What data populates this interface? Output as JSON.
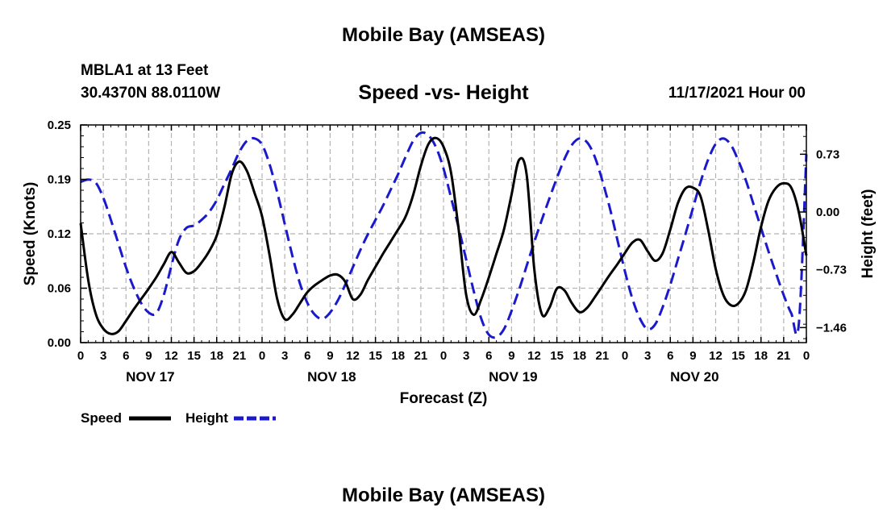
{
  "header": {
    "title": "Mobile Bay (AMSEAS)",
    "station": "MBLA1 at 13 Feet",
    "coords": "30.4370N  88.0110W",
    "subtitle": "Speed -vs- Height",
    "datetime": "11/17/2021 Hour 00"
  },
  "footer": {
    "title": "Mobile Bay (AMSEAS)"
  },
  "legend": {
    "speed": "Speed",
    "height": "Height"
  },
  "colors": {
    "speed": "#000000",
    "height": "#1a1acc",
    "grid": "#b4b4b4"
  },
  "chart_data": {
    "type": "line",
    "title": "Speed -vs- Height",
    "xlabel": "Forecast (Z)",
    "ylabel": "Speed (Knots)",
    "y2label": "Height (feet)",
    "xlim": [
      0,
      96
    ],
    "ylim": [
      0,
      0.25
    ],
    "y2lim": [
      -1.65,
      1.1
    ],
    "yticks": [
      "0.00",
      "0.06",
      "0.12",
      "0.19",
      "0.25"
    ],
    "y2ticks": [
      "0.73",
      "0.00",
      "-0.73",
      "-1.46"
    ],
    "xticks": [
      "0",
      "3",
      "6",
      "9",
      "12",
      "15",
      "18",
      "21",
      "0",
      "3",
      "6",
      "9",
      "12",
      "15",
      "18",
      "21",
      "0",
      "3",
      "6",
      "9",
      "12",
      "15",
      "18",
      "21",
      "0",
      "3",
      "6",
      "9",
      "12",
      "15",
      "18",
      "21",
      "0"
    ],
    "day_labels": [
      {
        "label": "NOV 17",
        "hour": 9
      },
      {
        "label": "NOV 18",
        "hour": 33
      },
      {
        "label": "NOV 19",
        "hour": 57
      },
      {
        "label": "NOV 20",
        "hour": 81
      }
    ],
    "series": [
      {
        "name": "Speed",
        "axis": "left",
        "points": [
          [
            0,
            0.137
          ],
          [
            1,
            0.072
          ],
          [
            2,
            0.033
          ],
          [
            3,
            0.016
          ],
          [
            4,
            0.01
          ],
          [
            5,
            0.013
          ],
          [
            6,
            0.025
          ],
          [
            7,
            0.038
          ],
          [
            8,
            0.05
          ],
          [
            9,
            0.062
          ],
          [
            10,
            0.075
          ],
          [
            11,
            0.09
          ],
          [
            12,
            0.104
          ],
          [
            13,
            0.092
          ],
          [
            14,
            0.08
          ],
          [
            15,
            0.082
          ],
          [
            16,
            0.092
          ],
          [
            17,
            0.105
          ],
          [
            18,
            0.123
          ],
          [
            19,
            0.155
          ],
          [
            20,
            0.194
          ],
          [
            21,
            0.208
          ],
          [
            22,
            0.197
          ],
          [
            23,
            0.172
          ],
          [
            24,
            0.145
          ],
          [
            25,
            0.1
          ],
          [
            26,
            0.05
          ],
          [
            27,
            0.027
          ],
          [
            28,
            0.032
          ],
          [
            29,
            0.045
          ],
          [
            30,
            0.058
          ],
          [
            31,
            0.066
          ],
          [
            32,
            0.072
          ],
          [
            33,
            0.077
          ],
          [
            34,
            0.078
          ],
          [
            35,
            0.07
          ],
          [
            36,
            0.05
          ],
          [
            37,
            0.055
          ],
          [
            38,
            0.072
          ],
          [
            39,
            0.087
          ],
          [
            40,
            0.102
          ],
          [
            41,
            0.116
          ],
          [
            42,
            0.13
          ],
          [
            43,
            0.145
          ],
          [
            44,
            0.17
          ],
          [
            45,
            0.203
          ],
          [
            46,
            0.228
          ],
          [
            47,
            0.235
          ],
          [
            48,
            0.225
          ],
          [
            49,
            0.195
          ],
          [
            50,
            0.13
          ],
          [
            51,
            0.055
          ],
          [
            52,
            0.032
          ],
          [
            53,
            0.05
          ],
          [
            54,
            0.075
          ],
          [
            55,
            0.102
          ],
          [
            56,
            0.13
          ],
          [
            57,
            0.17
          ],
          [
            58,
            0.21
          ],
          [
            59,
            0.193
          ],
          [
            60,
            0.085
          ],
          [
            61,
            0.033
          ],
          [
            62,
            0.04
          ],
          [
            63,
            0.062
          ],
          [
            64,
            0.06
          ],
          [
            65,
            0.045
          ],
          [
            66,
            0.035
          ],
          [
            67,
            0.04
          ],
          [
            68,
            0.052
          ],
          [
            69,
            0.065
          ],
          [
            70,
            0.078
          ],
          [
            71,
            0.09
          ],
          [
            72,
            0.103
          ],
          [
            73,
            0.115
          ],
          [
            74,
            0.118
          ],
          [
            75,
            0.105
          ],
          [
            76,
            0.094
          ],
          [
            77,
            0.103
          ],
          [
            78,
            0.13
          ],
          [
            79,
            0.16
          ],
          [
            80,
            0.177
          ],
          [
            81,
            0.178
          ],
          [
            82,
            0.168
          ],
          [
            83,
            0.13
          ],
          [
            84,
            0.085
          ],
          [
            85,
            0.055
          ],
          [
            86,
            0.043
          ],
          [
            87,
            0.045
          ],
          [
            88,
            0.06
          ],
          [
            89,
            0.093
          ],
          [
            90,
            0.133
          ],
          [
            91,
            0.163
          ],
          [
            92,
            0.178
          ],
          [
            93,
            0.183
          ],
          [
            94,
            0.178
          ],
          [
            95,
            0.15
          ],
          [
            96,
            0.1
          ]
        ]
      },
      {
        "name": "Height",
        "axis": "right",
        "points": [
          [
            0,
            0.38
          ],
          [
            1,
            0.41
          ],
          [
            2,
            0.37
          ],
          [
            3,
            0.18
          ],
          [
            4,
            -0.1
          ],
          [
            5,
            -0.4
          ],
          [
            6,
            -0.7
          ],
          [
            7,
            -0.95
          ],
          [
            8,
            -1.15
          ],
          [
            9,
            -1.27
          ],
          [
            10,
            -1.28
          ],
          [
            11,
            -1.05
          ],
          [
            12,
            -0.68
          ],
          [
            13,
            -0.35
          ],
          [
            14,
            -0.2
          ],
          [
            15,
            -0.17
          ],
          [
            16,
            -0.1
          ],
          [
            17,
            0.0
          ],
          [
            18,
            0.15
          ],
          [
            19,
            0.35
          ],
          [
            20,
            0.55
          ],
          [
            21,
            0.76
          ],
          [
            22,
            0.9
          ],
          [
            23,
            0.93
          ],
          [
            24,
            0.85
          ],
          [
            25,
            0.6
          ],
          [
            26,
            0.25
          ],
          [
            27,
            -0.15
          ],
          [
            28,
            -0.55
          ],
          [
            29,
            -0.9
          ],
          [
            30,
            -1.15
          ],
          [
            31,
            -1.3
          ],
          [
            32,
            -1.35
          ],
          [
            33,
            -1.27
          ],
          [
            34,
            -1.12
          ],
          [
            35,
            -0.92
          ],
          [
            36,
            -0.7
          ],
          [
            37,
            -0.48
          ],
          [
            38,
            -0.28
          ],
          [
            39,
            -0.1
          ],
          [
            40,
            0.08
          ],
          [
            41,
            0.28
          ],
          [
            42,
            0.48
          ],
          [
            43,
            0.7
          ],
          [
            44,
            0.9
          ],
          [
            45,
            1.0
          ],
          [
            46,
            0.97
          ],
          [
            47,
            0.82
          ],
          [
            48,
            0.55
          ],
          [
            49,
            0.18
          ],
          [
            50,
            -0.2
          ],
          [
            51,
            -0.6
          ],
          [
            52,
            -1.0
          ],
          [
            53,
            -1.35
          ],
          [
            54,
            -1.55
          ],
          [
            55,
            -1.58
          ],
          [
            56,
            -1.48
          ],
          [
            57,
            -1.25
          ],
          [
            58,
            -0.98
          ],
          [
            59,
            -0.68
          ],
          [
            60,
            -0.38
          ],
          [
            61,
            -0.1
          ],
          [
            62,
            0.17
          ],
          [
            63,
            0.43
          ],
          [
            64,
            0.67
          ],
          [
            65,
            0.85
          ],
          [
            66,
            0.93
          ],
          [
            67,
            0.88
          ],
          [
            68,
            0.7
          ],
          [
            69,
            0.4
          ],
          [
            70,
            0.05
          ],
          [
            71,
            -0.35
          ],
          [
            72,
            -0.75
          ],
          [
            73,
            -1.1
          ],
          [
            74,
            -1.35
          ],
          [
            75,
            -1.48
          ],
          [
            76,
            -1.42
          ],
          [
            77,
            -1.2
          ],
          [
            78,
            -0.92
          ],
          [
            79,
            -0.6
          ],
          [
            80,
            -0.28
          ],
          [
            81,
            0.05
          ],
          [
            82,
            0.38
          ],
          [
            83,
            0.66
          ],
          [
            84,
            0.86
          ],
          [
            85,
            0.93
          ],
          [
            86,
            0.85
          ],
          [
            87,
            0.65
          ],
          [
            88,
            0.4
          ],
          [
            89,
            0.1
          ],
          [
            90,
            -0.2
          ],
          [
            91,
            -0.5
          ],
          [
            92,
            -0.78
          ],
          [
            93,
            -1.05
          ],
          [
            94,
            -1.28
          ],
          [
            95,
            -1.42
          ],
          [
            96,
            0.73
          ]
        ]
      }
    ]
  }
}
